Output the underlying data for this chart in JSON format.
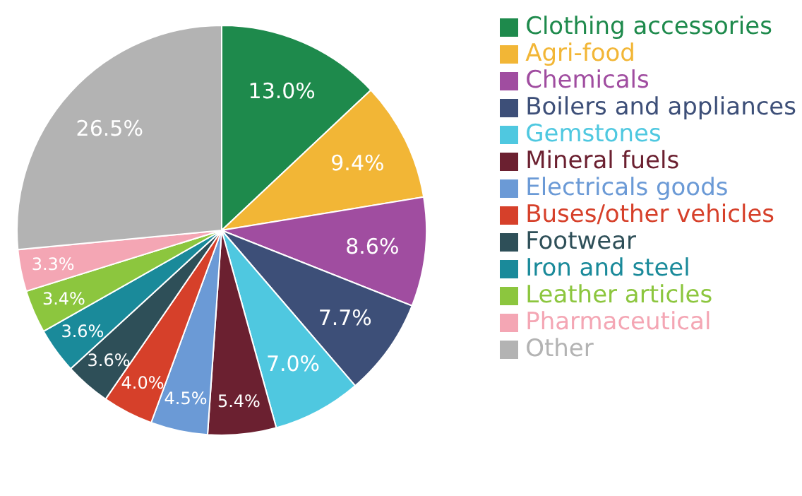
{
  "chart_data": {
    "type": "pie",
    "categories": [
      "Clothing accessories",
      "Agri-food",
      "Chemicals",
      "Boilers and appliances",
      "Gemstones",
      "Mineral fuels",
      "Electricals goods",
      "Buses/other vehicles",
      "Footwear",
      "Iron and steel",
      "Leather articles",
      "Pharmaceutical",
      "Other"
    ],
    "values": [
      13.0,
      9.4,
      8.6,
      7.7,
      7.0,
      5.4,
      4.5,
      4.0,
      3.6,
      3.6,
      3.4,
      3.3,
      26.5
    ],
    "value_labels": [
      "13.0%",
      "9.4%",
      "8.6%",
      "7.7%",
      "7.0%",
      "5.4%",
      "4.5%",
      "4.0%",
      "3.6%",
      "3.6%",
      "3.4%",
      "3.3%",
      "26.5%"
    ],
    "colors": [
      "#1e8a4c",
      "#f2b636",
      "#a04da0",
      "#3d4f78",
      "#4fc8e0",
      "#6b2030",
      "#6b9ad6",
      "#d6402a",
      "#2e4f58",
      "#1a8a9a",
      "#8cc63e",
      "#f4a6b4",
      "#b3b3b3"
    ],
    "legend": "right"
  }
}
